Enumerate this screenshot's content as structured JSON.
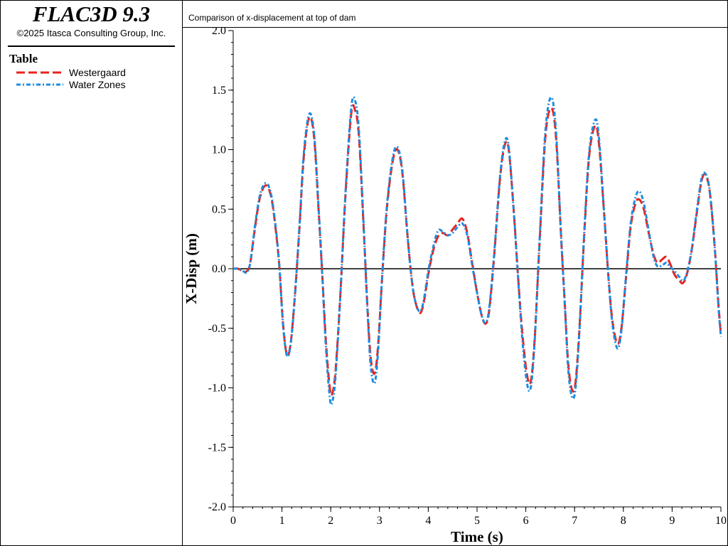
{
  "app": {
    "title": "FLAC3D 9.3",
    "copyright": "©2025 Itasca Consulting Group, Inc."
  },
  "legend": {
    "title": "Table",
    "items": [
      {
        "label": "Westergaard",
        "color": "#e8231e",
        "style": "dashed"
      },
      {
        "label": "Water Zones",
        "color": "#1f8de0",
        "style": "dotted-dash"
      }
    ]
  },
  "chart_data": {
    "type": "line",
    "title": "Comparison of x-displacement at top of dam",
    "xlabel": "Time (s)",
    "ylabel": "X-Disp (m)",
    "xlim": [
      0,
      10
    ],
    "ylim": [
      -2.0,
      2.0
    ],
    "x_ticks": [
      "0",
      "1",
      "2",
      "3",
      "4",
      "5",
      "6",
      "7",
      "8",
      "9",
      "10"
    ],
    "y_ticks": [
      "2.0",
      "1.5",
      "1.0",
      "0.5",
      "0.0",
      "-0.5",
      "-1.0",
      "-1.5",
      "-2.0"
    ],
    "zero_line": true,
    "grid": false,
    "series": [
      {
        "name": "Westergaard",
        "color": "#e8231e",
        "points": [
          [
            0,
            0
          ],
          [
            0.1,
            0
          ],
          [
            0.2,
            -0.02
          ],
          [
            0.28,
            -0.02
          ],
          [
            0.35,
            0.05
          ],
          [
            0.45,
            0.35
          ],
          [
            0.55,
            0.6
          ],
          [
            0.67,
            0.7
          ],
          [
            0.78,
            0.6
          ],
          [
            0.88,
            0.3
          ],
          [
            0.95,
            0
          ],
          [
            1.02,
            -0.45
          ],
          [
            1.1,
            -0.72
          ],
          [
            1.18,
            -0.62
          ],
          [
            1.27,
            -0.2
          ],
          [
            1.36,
            0.35
          ],
          [
            1.45,
            0.95
          ],
          [
            1.56,
            1.27
          ],
          [
            1.66,
            1.1
          ],
          [
            1.75,
            0.5
          ],
          [
            1.82,
            0
          ],
          [
            1.9,
            -0.6
          ],
          [
            1.98,
            -1.0
          ],
          [
            2.03,
            -1.05
          ],
          [
            2.1,
            -0.85
          ],
          [
            2.2,
            -0.2
          ],
          [
            2.3,
            0.6
          ],
          [
            2.42,
            1.3
          ],
          [
            2.5,
            1.33
          ],
          [
            2.58,
            1.1
          ],
          [
            2.68,
            0.3
          ],
          [
            2.75,
            -0.3
          ],
          [
            2.82,
            -0.75
          ],
          [
            2.9,
            -0.88
          ],
          [
            2.97,
            -0.65
          ],
          [
            3.05,
            -0.1
          ],
          [
            3.15,
            0.5
          ],
          [
            3.27,
            0.9
          ],
          [
            3.37,
            1.0
          ],
          [
            3.47,
            0.8
          ],
          [
            3.57,
            0.3
          ],
          [
            3.65,
            -0.05
          ],
          [
            3.72,
            -0.25
          ],
          [
            3.82,
            -0.37
          ],
          [
            3.9,
            -0.3
          ],
          [
            4,
            -0.05
          ],
          [
            4.1,
            0.15
          ],
          [
            4.2,
            0.27
          ],
          [
            4.3,
            0.3
          ],
          [
            4.4,
            0.28
          ],
          [
            4.5,
            0.33
          ],
          [
            4.6,
            0.38
          ],
          [
            4.7,
            0.42
          ],
          [
            4.8,
            0.3
          ],
          [
            4.9,
            0.05
          ],
          [
            5,
            -0.2
          ],
          [
            5.1,
            -0.4
          ],
          [
            5.18,
            -0.46
          ],
          [
            5.25,
            -0.35
          ],
          [
            5.35,
            0.1
          ],
          [
            5.47,
            0.75
          ],
          [
            5.57,
            1.04
          ],
          [
            5.65,
            1.0
          ],
          [
            5.75,
            0.5
          ],
          [
            5.83,
            0
          ],
          [
            5.92,
            -0.5
          ],
          [
            6.02,
            -0.88
          ],
          [
            6.1,
            -0.95
          ],
          [
            6.18,
            -0.6
          ],
          [
            6.28,
            0.2
          ],
          [
            6.4,
            1.1
          ],
          [
            6.52,
            1.35
          ],
          [
            6.62,
            1.1
          ],
          [
            6.72,
            0.3
          ],
          [
            6.8,
            -0.3
          ],
          [
            6.87,
            -0.8
          ],
          [
            6.95,
            -1.02
          ],
          [
            7.02,
            -0.95
          ],
          [
            7.1,
            -0.5
          ],
          [
            7.2,
            0.3
          ],
          [
            7.3,
            0.95
          ],
          [
            7.42,
            1.2
          ],
          [
            7.5,
            1.05
          ],
          [
            7.6,
            0.5
          ],
          [
            7.7,
            -0.1
          ],
          [
            7.78,
            -0.45
          ],
          [
            7.88,
            -0.63
          ],
          [
            7.96,
            -0.5
          ],
          [
            8.05,
            -0.1
          ],
          [
            8.15,
            0.35
          ],
          [
            8.25,
            0.55
          ],
          [
            8.33,
            0.58
          ],
          [
            8.42,
            0.5
          ],
          [
            8.52,
            0.3
          ],
          [
            8.62,
            0.12
          ],
          [
            8.7,
            0.05
          ],
          [
            8.8,
            0.08
          ],
          [
            8.88,
            0.1
          ],
          [
            8.95,
            0.05
          ],
          [
            9.05,
            -0.05
          ],
          [
            9.15,
            -0.1
          ],
          [
            9.22,
            -0.12
          ],
          [
            9.3,
            -0.05
          ],
          [
            9.4,
            0.15
          ],
          [
            9.5,
            0.45
          ],
          [
            9.6,
            0.73
          ],
          [
            9.68,
            0.79
          ],
          [
            9.77,
            0.65
          ],
          [
            9.87,
            0.2
          ],
          [
            9.95,
            -0.3
          ],
          [
            10,
            -0.55
          ]
        ]
      },
      {
        "name": "Water Zones",
        "color": "#1f8de0",
        "points": [
          [
            0,
            0
          ],
          [
            0.1,
            0
          ],
          [
            0.2,
            -0.02
          ],
          [
            0.28,
            -0.03
          ],
          [
            0.35,
            0.05
          ],
          [
            0.45,
            0.37
          ],
          [
            0.55,
            0.62
          ],
          [
            0.67,
            0.72
          ],
          [
            0.78,
            0.62
          ],
          [
            0.88,
            0.32
          ],
          [
            0.95,
            0
          ],
          [
            1.02,
            -0.46
          ],
          [
            1.1,
            -0.73
          ],
          [
            1.18,
            -0.63
          ],
          [
            1.27,
            -0.2
          ],
          [
            1.36,
            0.37
          ],
          [
            1.45,
            0.98
          ],
          [
            1.56,
            1.3
          ],
          [
            1.66,
            1.13
          ],
          [
            1.75,
            0.52
          ],
          [
            1.82,
            0
          ],
          [
            1.9,
            -0.65
          ],
          [
            1.98,
            -1.08
          ],
          [
            2.03,
            -1.12
          ],
          [
            2.1,
            -0.9
          ],
          [
            2.2,
            -0.2
          ],
          [
            2.3,
            0.62
          ],
          [
            2.42,
            1.35
          ],
          [
            2.5,
            1.41
          ],
          [
            2.58,
            1.15
          ],
          [
            2.68,
            0.32
          ],
          [
            2.75,
            -0.32
          ],
          [
            2.82,
            -0.82
          ],
          [
            2.9,
            -0.96
          ],
          [
            2.97,
            -0.7
          ],
          [
            3.05,
            -0.1
          ],
          [
            3.15,
            0.52
          ],
          [
            3.27,
            0.93
          ],
          [
            3.37,
            1.02
          ],
          [
            3.47,
            0.82
          ],
          [
            3.57,
            0.3
          ],
          [
            3.65,
            -0.05
          ],
          [
            3.72,
            -0.25
          ],
          [
            3.82,
            -0.36
          ],
          [
            3.9,
            -0.28
          ],
          [
            4,
            -0.02
          ],
          [
            4.1,
            0.18
          ],
          [
            4.2,
            0.32
          ],
          [
            4.3,
            0.31
          ],
          [
            4.4,
            0.28
          ],
          [
            4.5,
            0.3
          ],
          [
            4.6,
            0.35
          ],
          [
            4.7,
            0.38
          ],
          [
            4.8,
            0.28
          ],
          [
            4.9,
            0.03
          ],
          [
            5,
            -0.2
          ],
          [
            5.1,
            -0.4
          ],
          [
            5.18,
            -0.45
          ],
          [
            5.25,
            -0.33
          ],
          [
            5.35,
            0.12
          ],
          [
            5.47,
            0.77
          ],
          [
            5.57,
            1.07
          ],
          [
            5.65,
            1.02
          ],
          [
            5.75,
            0.5
          ],
          [
            5.83,
            0
          ],
          [
            5.92,
            -0.55
          ],
          [
            6.02,
            -0.95
          ],
          [
            6.1,
            -1.0
          ],
          [
            6.18,
            -0.62
          ],
          [
            6.28,
            0.22
          ],
          [
            6.4,
            1.15
          ],
          [
            6.52,
            1.44
          ],
          [
            6.62,
            1.15
          ],
          [
            6.72,
            0.3
          ],
          [
            6.8,
            -0.3
          ],
          [
            6.87,
            -0.85
          ],
          [
            6.95,
            -1.08
          ],
          [
            7.02,
            -1.0
          ],
          [
            7.1,
            -0.52
          ],
          [
            7.2,
            0.32
          ],
          [
            7.3,
            0.98
          ],
          [
            7.42,
            1.25
          ],
          [
            7.5,
            1.1
          ],
          [
            7.6,
            0.5
          ],
          [
            7.7,
            -0.1
          ],
          [
            7.78,
            -0.48
          ],
          [
            7.88,
            -0.67
          ],
          [
            7.96,
            -0.52
          ],
          [
            8.05,
            -0.08
          ],
          [
            8.15,
            0.38
          ],
          [
            8.25,
            0.6
          ],
          [
            8.33,
            0.65
          ],
          [
            8.42,
            0.55
          ],
          [
            8.52,
            0.32
          ],
          [
            8.62,
            0.1
          ],
          [
            8.7,
            0.02
          ],
          [
            8.8,
            0.03
          ],
          [
            8.88,
            0.05
          ],
          [
            8.95,
            0.02
          ],
          [
            9.05,
            -0.02
          ],
          [
            9.15,
            -0.07
          ],
          [
            9.22,
            -0.1
          ],
          [
            9.3,
            -0.04
          ],
          [
            9.4,
            0.16
          ],
          [
            9.5,
            0.47
          ],
          [
            9.6,
            0.75
          ],
          [
            9.68,
            0.8
          ],
          [
            9.77,
            0.66
          ],
          [
            9.87,
            0.2
          ],
          [
            9.95,
            -0.32
          ],
          [
            10,
            -0.57
          ]
        ]
      }
    ]
  }
}
